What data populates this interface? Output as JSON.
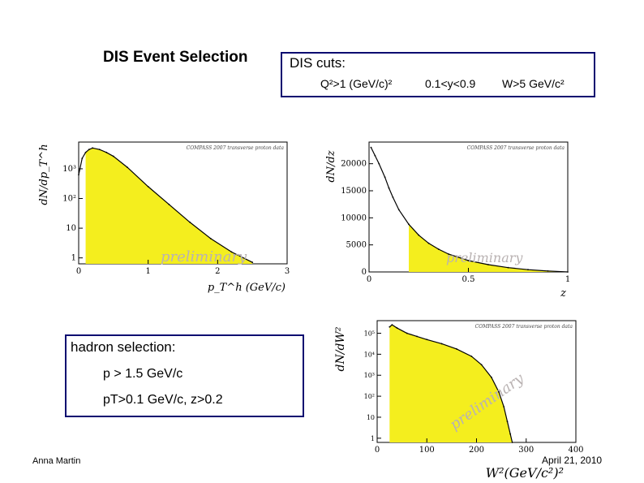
{
  "slide": {
    "title": "DIS Event Selection",
    "cuts_title": "DIS cuts:",
    "cut_q2": "Q²>1 (GeV/c)²",
    "cut_y": "0.1<y<0.9",
    "cut_w": "W>5 GeV/c²",
    "hadron_title": "hadron selection:",
    "hadron_p": "p > 1.5 GeV/c",
    "hadron_pt_z": "pT>0.1 GeV/c, z>0.2",
    "author": "Anna Martin",
    "date": "April 21, 2010"
  },
  "colors": {
    "fill": "#f4ee1e",
    "line": "#000000",
    "box_border": "#0a0a70",
    "watermark": "#b9b2b2"
  },
  "chart_data": [
    {
      "type": "area",
      "header": "COMPASS 2007 transverse proton data",
      "watermark": "preliminary",
      "xlabel": "p_T^h (GeV/c)",
      "ylabel": "dN/dp_T^h",
      "x_ticks": [
        "0",
        "1",
        "2",
        "3"
      ],
      "y_ticks": [
        "1",
        "10",
        "10²",
        "10³"
      ],
      "xlim": [
        0,
        3
      ],
      "y_scale": "log",
      "ylim_exp": [
        -0.2,
        3.9
      ],
      "x": [
        0,
        0.05,
        0.1,
        0.15,
        0.2,
        0.3,
        0.4,
        0.5,
        0.7,
        1.0,
        1.3,
        1.6,
        1.9,
        2.2,
        2.5
      ],
      "y_exp": [
        2.8,
        3.35,
        3.55,
        3.65,
        3.7,
        3.65,
        3.55,
        3.42,
        3.05,
        2.4,
        1.8,
        1.2,
        0.65,
        0.2,
        -0.15
      ],
      "shaded_from": 0.1
    },
    {
      "type": "area",
      "header": "COMPASS 2007 transverse proton data",
      "watermark": "preliminary",
      "xlabel": "z",
      "ylabel": "dN/dz",
      "x_ticks": [
        "0",
        "0.5",
        "1"
      ],
      "y_ticks": [
        "0",
        "5000",
        "10000",
        "15000",
        "20000"
      ],
      "xlim": [
        0,
        1
      ],
      "ylim": [
        0,
        24000
      ],
      "x": [
        0.01,
        0.03,
        0.05,
        0.08,
        0.1,
        0.12,
        0.15,
        0.2,
        0.25,
        0.3,
        0.35,
        0.4,
        0.5,
        0.6,
        0.7,
        0.8,
        0.9,
        1.0
      ],
      "y": [
        23000,
        21500,
        20000,
        17500,
        15500,
        13800,
        11500,
        8800,
        6800,
        5300,
        4200,
        3300,
        2100,
        1350,
        800,
        420,
        170,
        0
      ],
      "shaded_from": 0.2
    },
    {
      "type": "area",
      "header": "COMPASS 2007 transverse proton data",
      "watermark": "preliminary",
      "xlabel": "W²(GeV/c²)²",
      "ylabel": "dN/dW²",
      "x_ticks": [
        "0",
        "100",
        "200",
        "300",
        "400"
      ],
      "y_ticks": [
        "1",
        "10",
        "10²",
        "10³",
        "10⁴",
        "10⁵"
      ],
      "xlim": [
        0,
        400
      ],
      "y_scale": "log",
      "ylim_exp": [
        -0.2,
        5.6
      ],
      "x": [
        25,
        30,
        40,
        60,
        80,
        100,
        130,
        160,
        190,
        210,
        230,
        245,
        255,
        262,
        268,
        272
      ],
      "y_exp": [
        5.3,
        5.4,
        5.25,
        5.0,
        4.85,
        4.7,
        4.5,
        4.25,
        3.9,
        3.5,
        2.9,
        2.2,
        1.5,
        0.8,
        0.2,
        -0.2
      ],
      "shaded_from": 25
    }
  ]
}
